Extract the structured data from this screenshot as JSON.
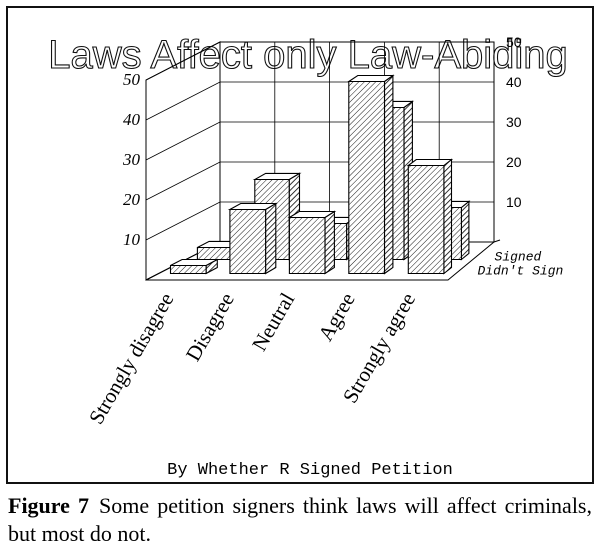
{
  "chart_data": {
    "type": "bar",
    "title": "Laws Affect only Law-Abiding",
    "subtitle": "By Whether R Signed Petition",
    "categories": [
      "Strongly disagree",
      "Disagree",
      "Neutral",
      "Agree",
      "Strongly agree"
    ],
    "series": [
      {
        "name": "Didn't Sign",
        "values": [
          2,
          16,
          14,
          48,
          27
        ]
      },
      {
        "name": "Signed",
        "values": [
          3,
          20,
          9,
          38,
          13
        ]
      }
    ],
    "ylim": [
      0,
      50
    ],
    "yticks": [
      10,
      20,
      30,
      40,
      50
    ],
    "grid": true,
    "colors": {
      "bar": "#ffffff",
      "hatch": "#000000",
      "line": "#000000"
    }
  },
  "caption": {
    "label": "Figure 7",
    "text": "Some petition signers think laws will affect criminals, but most do not."
  }
}
